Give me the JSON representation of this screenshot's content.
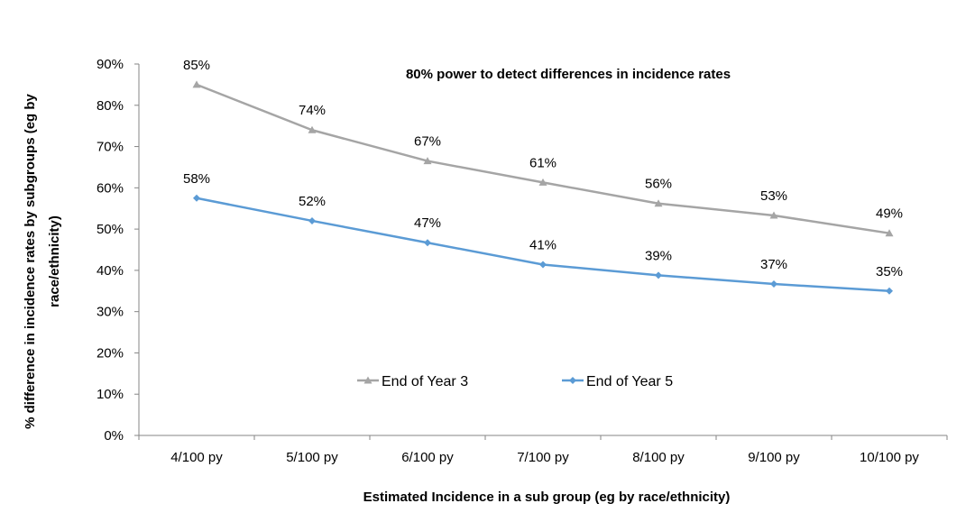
{
  "chart_data": {
    "type": "line",
    "title": "80% power to detect differences in incidence rates",
    "xlabel": "Estimated Incidence in a sub group (eg by race/ethnicity)",
    "ylabel_line1": "% difference in incidence rates by subgroups (eg by",
    "ylabel_line2": "race/ethnicity)",
    "categories": [
      "4/100 py",
      "5/100 py",
      "6/100 py",
      "7/100 py",
      "8/100 py",
      "9/100 py",
      "10/100 py"
    ],
    "y_ticks": [
      "0%",
      "10%",
      "20%",
      "30%",
      "40%",
      "50%",
      "60%",
      "70%",
      "80%",
      "90%"
    ],
    "ylim": [
      0,
      90
    ],
    "grid": false,
    "legend_position": "inside-bottom-center",
    "series": [
      {
        "name": "End of Year 3",
        "values": [
          85,
          74,
          66.5,
          61.3,
          56.2,
          53.3,
          49
        ],
        "labels": [
          "85%",
          "74%",
          "67%",
          "61%",
          "56%",
          "53%",
          "49%"
        ],
        "color": "#a5a5a5",
        "marker": "triangle"
      },
      {
        "name": "End of Year 5",
        "values": [
          57.5,
          52,
          46.7,
          41.4,
          38.8,
          36.7,
          35
        ],
        "labels": [
          "58%",
          "52%",
          "47%",
          "41%",
          "39%",
          "37%",
          "35%"
        ],
        "color": "#5b9bd5",
        "marker": "diamond"
      }
    ]
  }
}
